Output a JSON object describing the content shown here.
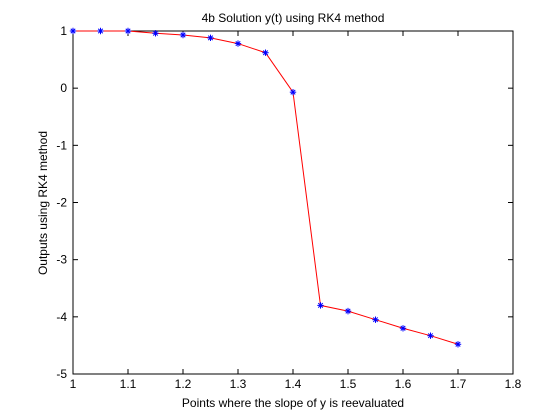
{
  "chart_data": {
    "type": "line",
    "title": "4b Solution y(t) using RK4 method",
    "xlabel": "Points where the slope of y is reevaluated",
    "ylabel": "Outputs using RK4 method",
    "xlim": [
      1,
      1.8
    ],
    "ylim": [
      -5,
      1
    ],
    "xticks": [
      "1",
      "1.1",
      "1.2",
      "1.3",
      "1.4",
      "1.5",
      "1.6",
      "1.7",
      "1.8"
    ],
    "yticks": [
      "1",
      "0",
      "-1",
      "-2",
      "-3",
      "-4",
      "-5"
    ],
    "grid": false,
    "series": [
      {
        "x": [
          1.0,
          1.05,
          1.1,
          1.15,
          1.2,
          1.25,
          1.3,
          1.35,
          1.4,
          1.45,
          1.5,
          1.55,
          1.6,
          1.65,
          1.7
        ],
        "y": [
          1.0,
          1.0,
          1.0,
          0.96,
          0.93,
          0.88,
          0.78,
          0.62,
          -0.07,
          -3.8,
          -3.9,
          -4.05,
          -4.2,
          -4.33,
          -4.48
        ],
        "line_color": "#ff0000",
        "marker": "asterisk",
        "marker_color": "#0000ff"
      }
    ]
  }
}
